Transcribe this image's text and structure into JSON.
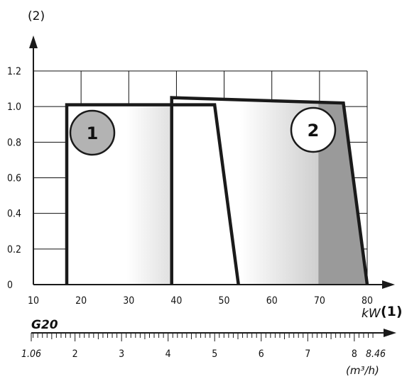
{
  "chart_data": {
    "type": "area",
    "ylabel": "(2)",
    "x_unit_label": "kW",
    "xlabel": "(1)",
    "xlim": [
      10,
      80
    ],
    "ylim": [
      0,
      1.2
    ],
    "x_ticks": [
      10,
      20,
      30,
      40,
      50,
      60,
      70,
      80
    ],
    "y_ticks": [
      "0",
      "0.2",
      "0.4",
      "0.6",
      "0.8",
      "1.0",
      "1.2"
    ],
    "series": [
      {
        "name": "1",
        "points": [
          [
            17,
            0
          ],
          [
            17,
            1.01
          ],
          [
            48,
            1.01
          ],
          [
            53,
            0
          ]
        ],
        "fill_color": "#9a9a9a",
        "badge_fill": "#b3b3b3"
      },
      {
        "name": "2",
        "points": [
          [
            39,
            0
          ],
          [
            39,
            1.05
          ],
          [
            75,
            1.02
          ],
          [
            80,
            0
          ]
        ],
        "fill_color": "#9a9a9a",
        "badge_fill": "#ffffff"
      }
    ],
    "dashed_line_x": 39,
    "secondary_axis": {
      "title": "G20",
      "unit_label": "(m³/h)",
      "tick_labels": [
        "1.06",
        "2",
        "3",
        "4",
        "5",
        "6",
        "7",
        "8",
        "8.46"
      ],
      "tick_values": [
        1.06,
        2,
        3,
        4,
        5,
        6,
        7,
        8,
        8.46
      ]
    },
    "grid": true
  }
}
